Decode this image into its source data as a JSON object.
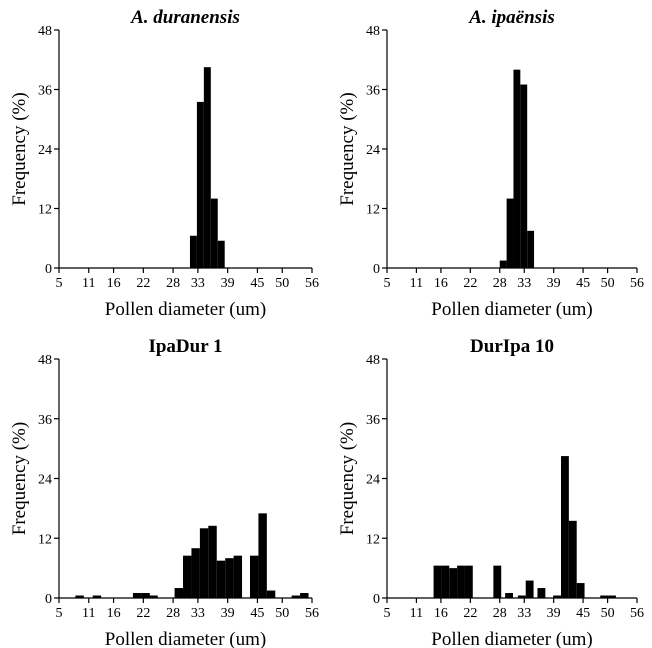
{
  "chart_data": [
    {
      "type": "bar",
      "title": "A. duranensis",
      "title_italic": true,
      "xlabel": "Pollen diameter  (um)",
      "ylabel": "Frequency (%)",
      "xlim": [
        5,
        56
      ],
      "ylim": [
        0,
        48
      ],
      "xticks": [
        "5",
        "11",
        "16",
        "22",
        "28",
        "33",
        "39",
        "45",
        "50",
        "56"
      ],
      "yticks": [
        "0",
        "12",
        "24",
        "36",
        "48"
      ],
      "bin_width": 1.4,
      "bins": [
        {
          "x": 31.4,
          "y": 6.5
        },
        {
          "x": 32.8,
          "y": 33.5
        },
        {
          "x": 34.2,
          "y": 40.5
        },
        {
          "x": 35.6,
          "y": 14.0
        },
        {
          "x": 37.0,
          "y": 5.5
        }
      ]
    },
    {
      "type": "bar",
      "title": "A. ipaënsis",
      "title_italic": true,
      "xlabel": "Pollen diameter  (um)",
      "ylabel": "Frequency (%)",
      "xlim": [
        5,
        56
      ],
      "ylim": [
        0,
        48
      ],
      "xticks": [
        "5",
        "11",
        "16",
        "22",
        "28",
        "33",
        "39",
        "45",
        "50",
        "56"
      ],
      "yticks": [
        "0",
        "12",
        "24",
        "36",
        "48"
      ],
      "bin_width": 1.4,
      "bins": [
        {
          "x": 28.0,
          "y": 1.5
        },
        {
          "x": 29.4,
          "y": 14.0
        },
        {
          "x": 30.8,
          "y": 40.0
        },
        {
          "x": 32.2,
          "y": 37.0
        },
        {
          "x": 33.6,
          "y": 7.5
        }
      ]
    },
    {
      "type": "bar",
      "title": "IpaDur 1",
      "title_italic": false,
      "xlabel": "Pollen diameter  (um)",
      "ylabel": "Frequency (%)",
      "xlim": [
        5,
        56
      ],
      "ylim": [
        0,
        48
      ],
      "xticks": [
        "5",
        "11",
        "16",
        "22",
        "28",
        "33",
        "39",
        "45",
        "50",
        "56"
      ],
      "yticks": [
        "0",
        "12",
        "24",
        "36",
        "48"
      ],
      "bin_width": 1.7,
      "bins": [
        {
          "x": 8.3,
          "y": 0.5
        },
        {
          "x": 11.8,
          "y": 0.5
        },
        {
          "x": 19.9,
          "y": 1.0
        },
        {
          "x": 21.6,
          "y": 1.0
        },
        {
          "x": 23.2,
          "y": 0.5
        },
        {
          "x": 28.3,
          "y": 2.0
        },
        {
          "x": 30.0,
          "y": 8.5
        },
        {
          "x": 31.7,
          "y": 10.0
        },
        {
          "x": 33.4,
          "y": 14.0
        },
        {
          "x": 35.1,
          "y": 14.5
        },
        {
          "x": 36.8,
          "y": 7.5
        },
        {
          "x": 38.5,
          "y": 8.0
        },
        {
          "x": 40.2,
          "y": 8.5
        },
        {
          "x": 43.5,
          "y": 8.5
        },
        {
          "x": 45.2,
          "y": 17.0
        },
        {
          "x": 46.9,
          "y": 1.5
        },
        {
          "x": 51.9,
          "y": 0.5
        },
        {
          "x": 53.6,
          "y": 1.0
        }
      ]
    },
    {
      "type": "bar",
      "title": "DurIpa 10",
      "title_italic": false,
      "xlabel": "Pollen diameter  (um)",
      "ylabel": "Frequency (%)",
      "xlim": [
        5,
        56
      ],
      "ylim": [
        0,
        48
      ],
      "xticks": [
        "5",
        "11",
        "16",
        "22",
        "28",
        "33",
        "39",
        "45",
        "50",
        "56"
      ],
      "yticks": [
        "0",
        "12",
        "24",
        "36",
        "48"
      ],
      "bin_width": 1.6,
      "bins": [
        {
          "x": 14.5,
          "y": 6.5
        },
        {
          "x": 16.1,
          "y": 6.5
        },
        {
          "x": 17.7,
          "y": 6.0
        },
        {
          "x": 19.3,
          "y": 6.5
        },
        {
          "x": 20.9,
          "y": 6.5
        },
        {
          "x": 26.7,
          "y": 6.5
        },
        {
          "x": 29.1,
          "y": 1.0
        },
        {
          "x": 31.7,
          "y": 0.5
        },
        {
          "x": 33.3,
          "y": 3.5
        },
        {
          "x": 35.7,
          "y": 2.0
        },
        {
          "x": 38.9,
          "y": 0.5
        },
        {
          "x": 40.5,
          "y": 28.5
        },
        {
          "x": 42.1,
          "y": 15.5
        },
        {
          "x": 43.7,
          "y": 3.0
        },
        {
          "x": 48.5,
          "y": 0.5
        },
        {
          "x": 50.1,
          "y": 0.5
        }
      ]
    }
  ]
}
